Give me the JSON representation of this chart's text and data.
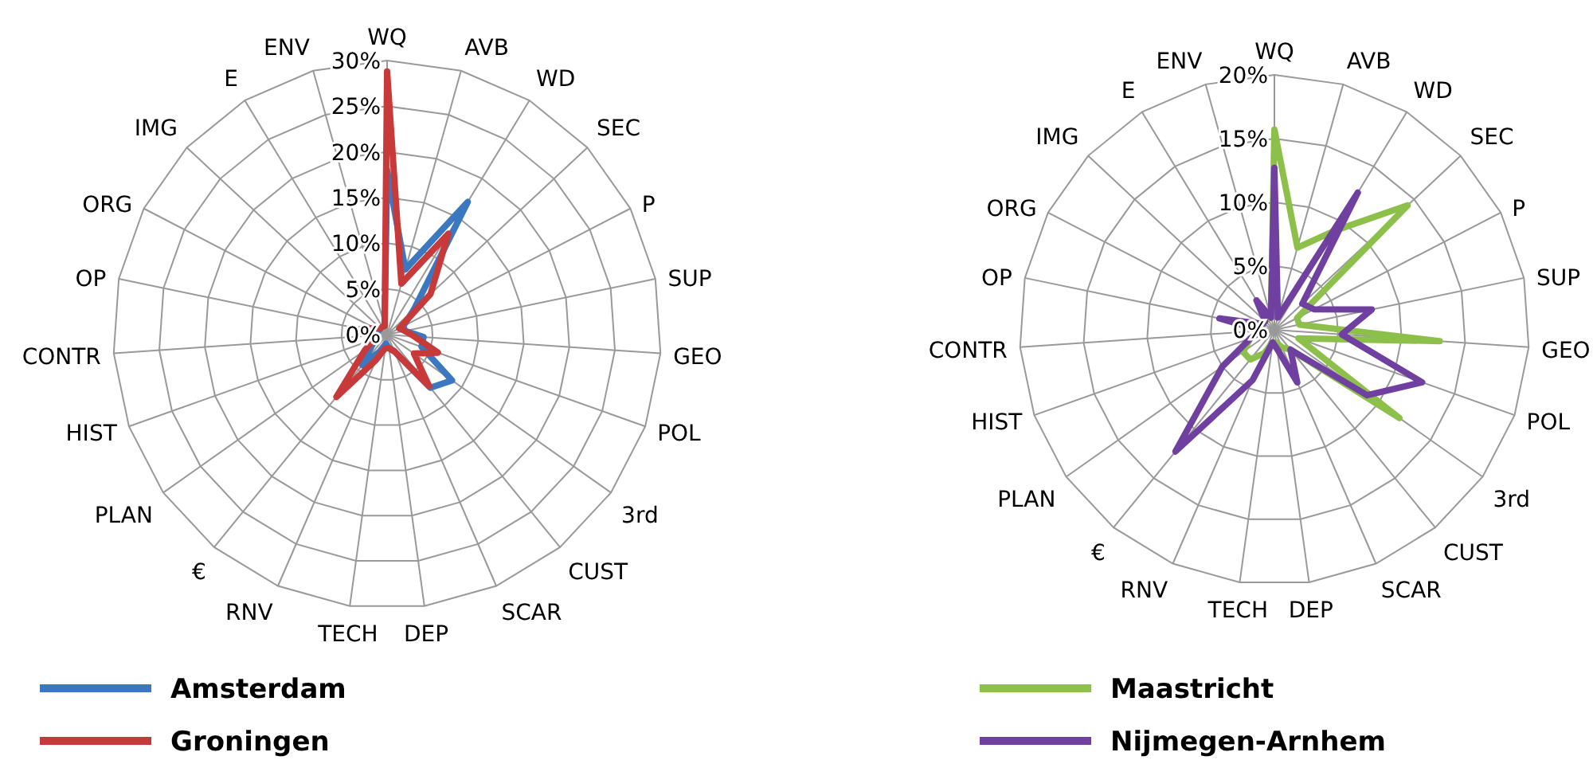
{
  "chart_data": [
    {
      "type": "radar",
      "categories": [
        "WQ",
        "AVB",
        "WD",
        "SEC",
        "P",
        "SUP",
        "GEO",
        "POL",
        "3rd",
        "CUST",
        "SCAR",
        "DEP",
        "TECH",
        "RNV",
        "€",
        "PLAN",
        "HIST",
        "CONTR",
        "OP",
        "ORG",
        "IMG",
        "E",
        "ENV"
      ],
      "ylim": [
        0,
        30
      ],
      "yticks": [
        {
          "value": 0,
          "label": "0%"
        },
        {
          "value": 5,
          "label": "5%"
        },
        {
          "value": 10,
          "label": "10%"
        },
        {
          "value": 15,
          "label": "15%"
        },
        {
          "value": 20,
          "label": "20%"
        },
        {
          "value": 25,
          "label": "25%"
        },
        {
          "value": 30,
          "label": "30%"
        }
      ],
      "grid": true,
      "legend": "bottom",
      "series": [
        {
          "name": "Amsterdam",
          "color": "#3b78c0",
          "values": [
            18,
            7.4,
            17,
            4,
            2,
            2,
            4,
            4,
            8.7,
            7.5,
            2,
            1.5,
            1,
            2,
            4.3,
            2,
            1,
            1,
            1.5,
            1,
            1,
            1,
            1
          ]
        },
        {
          "name": "Groningen",
          "color": "#c83a3a",
          "values": [
            28.8,
            5.8,
            12.9,
            6.5,
            1.5,
            2,
            3,
            5.9,
            3.6,
            7.3,
            2,
            1.5,
            1.5,
            3,
            8.8,
            3,
            1.5,
            2,
            3,
            1.5,
            1,
            1,
            1
          ]
        }
      ]
    },
    {
      "type": "radar",
      "categories": [
        "WQ",
        "AVB",
        "WD",
        "SEC",
        "P",
        "SUP",
        "GEO",
        "POL",
        "3rd",
        "CUST",
        "SCAR",
        "DEP",
        "TECH",
        "RNV",
        "€",
        "PLAN",
        "HIST",
        "CONTR",
        "OP",
        "ORG",
        "IMG",
        "E",
        "ENV"
      ],
      "ylim": [
        0,
        20
      ],
      "yticks": [
        {
          "value": 0,
          "label": "0%"
        },
        {
          "value": 5,
          "label": "5%"
        },
        {
          "value": 10,
          "label": "10%"
        },
        {
          "value": 15,
          "label": "15%"
        },
        {
          "value": 20,
          "label": "20%"
        }
      ],
      "grid": true,
      "legend": "bottom",
      "series": [
        {
          "name": "Maastricht",
          "color": "#8dc04a",
          "values": [
            15.7,
            6.7,
            9.1,
            14.3,
            2,
            2,
            13,
            2,
            12,
            2,
            1.5,
            1,
            1,
            2,
            3,
            3,
            2,
            1,
            1,
            1,
            1,
            1,
            1
          ]
        },
        {
          "name": "Nijmegen-Arnhem",
          "color": "#7040a0",
          "values": [
            12.7,
            1,
            12.6,
            3,
            3.5,
            7.8,
            5.3,
            12.3,
            8.9,
            2,
            4.5,
            1.5,
            1,
            4.3,
            12.3,
            5,
            2,
            1,
            4.4,
            1,
            1,
            2.7,
            1
          ]
        }
      ]
    }
  ]
}
